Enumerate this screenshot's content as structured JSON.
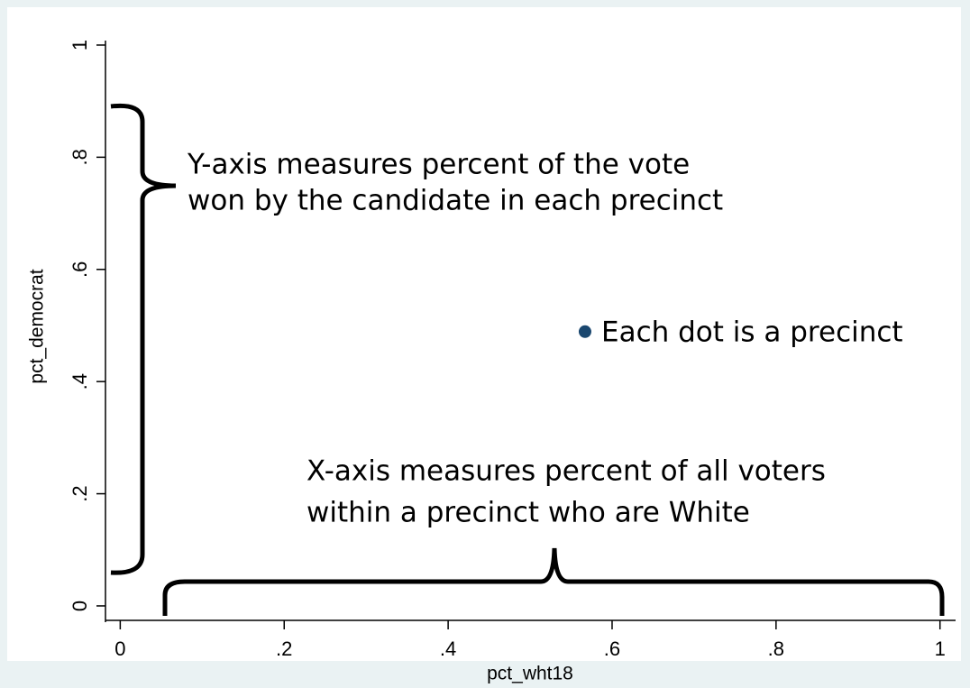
{
  "chart_data": {
    "type": "scatter",
    "x": [
      0.567
    ],
    "y": [
      0.489
    ],
    "color": "#1a476f",
    "xlim": [
      -0.018,
      1.019
    ],
    "ylim": [
      -0.029,
      1.008
    ],
    "xticks": [
      0,
      {
        "value": 0.2,
        "label": ".2"
      },
      {
        "value": 0.4,
        "label": ".4"
      },
      {
        "value": 0.6,
        "label": ".6"
      },
      {
        "value": 0.8,
        "label": ".8"
      },
      1
    ],
    "yticks": [
      0,
      {
        "value": 0.2,
        "label": ".2"
      },
      {
        "value": 0.4,
        "label": ".4"
      },
      {
        "value": 0.6,
        "label": ".6"
      },
      {
        "value": 0.8,
        "label": ".8"
      },
      1
    ],
    "x_label": "pct_wht18",
    "y_label": "pct_democrat",
    "annotations": [
      "Y-axis measures percent of the vote",
      "won by the candidate in each precinct",
      "Each dot is a precinct",
      "X-axis measures percent of all voters",
      "within a precinct who are White"
    ]
  }
}
